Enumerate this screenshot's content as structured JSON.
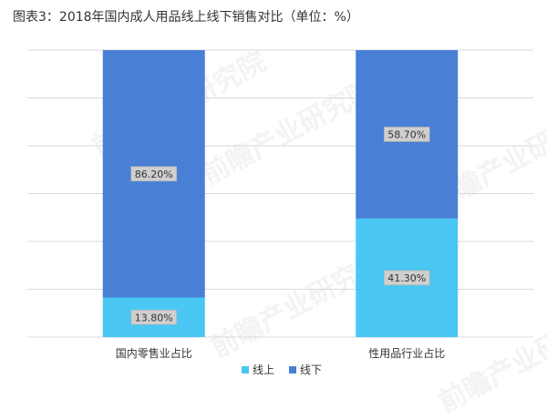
{
  "title": "图表3：2018年国内成人用品线上线下销售对比（单位：%）",
  "colors": {
    "online": "#4ac8f3",
    "offline": "#4a7fd6",
    "grid": "#d9d9d9",
    "label_bg": "#cfcfcf"
  },
  "watermark": "前瞻产业研究院",
  "chart_data": {
    "type": "bar",
    "stacked": true,
    "percent_stacked": true,
    "categories": [
      "国内零售业占比",
      "性用品行业占比"
    ],
    "series": [
      {
        "name": "线上",
        "values": [
          13.8,
          41.3
        ],
        "labels": [
          "13.80%",
          "41.30%"
        ]
      },
      {
        "name": "线下",
        "values": [
          86.2,
          58.7
        ],
        "labels": [
          "86.20%",
          "58.70%"
        ]
      }
    ],
    "ylim": [
      0,
      100
    ],
    "grid": true,
    "legend": "bottom"
  }
}
